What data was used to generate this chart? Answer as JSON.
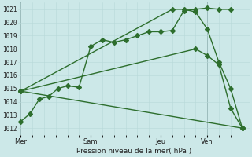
{
  "xlabel": "Pression niveau de la mer( hPa )",
  "ylim": [
    1011.5,
    1021.5
  ],
  "yticks": [
    1012,
    1013,
    1014,
    1015,
    1016,
    1017,
    1018,
    1019,
    1020,
    1021
  ],
  "bg_color": "#cce8e8",
  "line_color": "#2d6e2d",
  "grid_minor_color": "#b8d8d8",
  "grid_major_color": "#9ababa",
  "xtick_labels": [
    "Mer",
    "Sam",
    "Jeu",
    "Ven"
  ],
  "vline_positions": [
    0.0,
    3.0,
    6.0,
    8.0
  ],
  "xlim": [
    -0.1,
    9.8
  ],
  "lines": [
    {
      "x": [
        0.0,
        0.4,
        0.8,
        1.2,
        1.6,
        2.0,
        2.5,
        3.0,
        3.5,
        4.0,
        4.5,
        5.0,
        5.5,
        6.0,
        6.5,
        7.0,
        7.5,
        8.0,
        8.5,
        9.0
      ],
      "y": [
        1012.5,
        1013.1,
        1014.2,
        1014.4,
        1015.0,
        1015.2,
        1015.1,
        1018.2,
        1018.7,
        1018.5,
        1018.7,
        1019.0,
        1019.3,
        1019.3,
        1019.4,
        1020.9,
        1021.0,
        1021.1,
        1021.0,
        1021.0
      ]
    },
    {
      "x": [
        0.0,
        6.5,
        7.0,
        7.5,
        8.0,
        8.5,
        9.0,
        9.5
      ],
      "y": [
        1014.8,
        1021.0,
        1021.0,
        1020.8,
        1019.5,
        1017.0,
        1015.0,
        1012.0
      ]
    },
    {
      "x": [
        0.0,
        7.5,
        8.0,
        8.5,
        9.0,
        9.5
      ],
      "y": [
        1014.8,
        1018.0,
        1017.5,
        1016.8,
        1013.5,
        1012.0
      ]
    },
    {
      "x": [
        0.0,
        9.5
      ],
      "y": [
        1014.8,
        1012.0
      ]
    }
  ],
  "markersize": 3.0,
  "linewidth": 1.0
}
